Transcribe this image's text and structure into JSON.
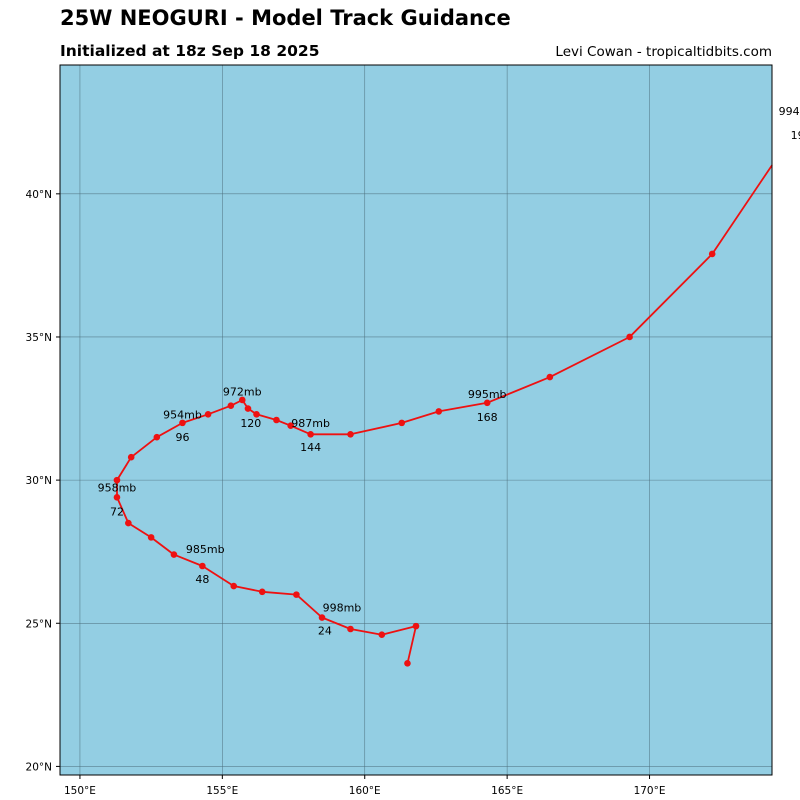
{
  "header": {
    "title": "25W NEOGURI - Model Track Guidance",
    "subtitle": "Initialized at 18z Sep 18 2025",
    "credit": "Levi Cowan - tropicaltidbits.com"
  },
  "colors": {
    "ocean": "#93CEE3",
    "track": "#EE1111",
    "grid": "#4a6b78"
  },
  "chart_data": {
    "type": "scatter",
    "map_extent": {
      "lon": [
        149.3,
        174.3
      ],
      "lat": [
        19.7,
        44.5
      ]
    },
    "lon_ticks": [
      {
        "value": 150,
        "label": "150°E"
      },
      {
        "value": 155,
        "label": "155°E"
      },
      {
        "value": 160,
        "label": "160°E"
      },
      {
        "value": 165,
        "label": "165°E"
      },
      {
        "value": 170,
        "label": "170°E"
      }
    ],
    "lat_ticks": [
      {
        "value": 20,
        "label": "20°N"
      },
      {
        "value": 25,
        "label": "25°N"
      },
      {
        "value": 30,
        "label": "30°N"
      },
      {
        "value": 35,
        "label": "35°N"
      },
      {
        "value": 40,
        "label": "40°N"
      }
    ],
    "grid": true,
    "track": [
      {
        "lon": 161.5,
        "lat": 23.6
      },
      {
        "lon": 161.8,
        "lat": 24.9
      },
      {
        "lon": 160.6,
        "lat": 24.6
      },
      {
        "lon": 159.5,
        "lat": 24.8
      },
      {
        "lon": 158.5,
        "lat": 25.2
      },
      {
        "lon": 157.6,
        "lat": 26.0
      },
      {
        "lon": 156.4,
        "lat": 26.1
      },
      {
        "lon": 155.4,
        "lat": 26.3
      },
      {
        "lon": 154.3,
        "lat": 27.0
      },
      {
        "lon": 153.3,
        "lat": 27.4
      },
      {
        "lon": 152.5,
        "lat": 28.0
      },
      {
        "lon": 151.7,
        "lat": 28.5
      },
      {
        "lon": 151.3,
        "lat": 29.4
      },
      {
        "lon": 151.3,
        "lat": 30.0
      },
      {
        "lon": 151.8,
        "lat": 30.8
      },
      {
        "lon": 152.7,
        "lat": 31.5
      },
      {
        "lon": 153.6,
        "lat": 32.0
      },
      {
        "lon": 154.5,
        "lat": 32.3
      },
      {
        "lon": 155.3,
        "lat": 32.6
      },
      {
        "lon": 155.7,
        "lat": 32.8
      },
      {
        "lon": 155.9,
        "lat": 32.5
      },
      {
        "lon": 156.2,
        "lat": 32.3
      },
      {
        "lon": 156.9,
        "lat": 32.1
      },
      {
        "lon": 157.4,
        "lat": 31.9
      },
      {
        "lon": 158.1,
        "lat": 31.6
      },
      {
        "lon": 159.5,
        "lat": 31.6
      },
      {
        "lon": 161.3,
        "lat": 32.0
      },
      {
        "lon": 162.6,
        "lat": 32.4
      },
      {
        "lon": 164.3,
        "lat": 32.7
      },
      {
        "lon": 166.5,
        "lat": 33.6
      },
      {
        "lon": 169.3,
        "lat": 35.0
      },
      {
        "lon": 172.2,
        "lat": 37.9
      },
      {
        "lon": 174.3,
        "lat": 41.0
      }
    ],
    "annotations": [
      {
        "text": "998mb",
        "lon": 159.2,
        "lat": 25.55
      },
      {
        "text": "24",
        "lon": 158.6,
        "lat": 24.75
      },
      {
        "text": "985mb",
        "lon": 154.4,
        "lat": 27.6
      },
      {
        "text": "48",
        "lon": 154.3,
        "lat": 26.55
      },
      {
        "text": "958mb",
        "lon": 151.3,
        "lat": 29.75
      },
      {
        "text": "72",
        "lon": 151.3,
        "lat": 28.9
      },
      {
        "text": "954mb",
        "lon": 153.6,
        "lat": 32.3
      },
      {
        "text": "96",
        "lon": 153.6,
        "lat": 31.5
      },
      {
        "text": "972mb",
        "lon": 155.7,
        "lat": 33.1
      },
      {
        "text": "120",
        "lon": 156.0,
        "lat": 32.0
      },
      {
        "text": "987mb",
        "lon": 158.1,
        "lat": 32.0
      },
      {
        "text": "144",
        "lon": 158.1,
        "lat": 31.15
      },
      {
        "text": "995mb",
        "lon": 164.3,
        "lat": 33.0
      },
      {
        "text": "168",
        "lon": 164.3,
        "lat": 32.2
      },
      {
        "text": "994",
        "lon": 174.9,
        "lat": 42.9
      },
      {
        "text": "19",
        "lon": 175.2,
        "lat": 42.05
      }
    ]
  }
}
